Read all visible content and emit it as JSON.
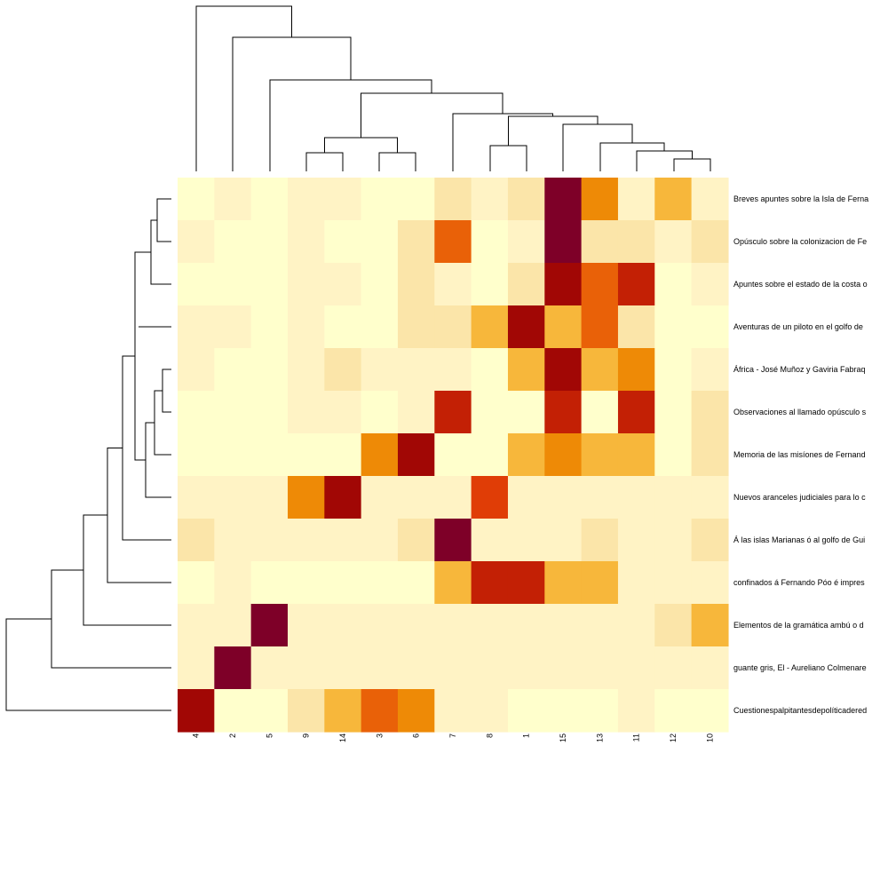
{
  "chart_data": {
    "type": "heatmap",
    "title": "",
    "xlabel": "",
    "ylabel": "",
    "columns": [
      "4",
      "2",
      "5",
      "9",
      "14",
      "3",
      "6",
      "7",
      "8",
      "1",
      "15",
      "13",
      "11",
      "12",
      "10"
    ],
    "rows": [
      "Breves apuntes sobre la Isla de Ferna",
      "Opúsculo sobre la colonizacion de Fe",
      "Apuntes sobre el estado de la costa o",
      "Aventuras de un piloto en el golfo de",
      "África - José Muñoz y Gaviria Fabraq",
      "Observaciones al llamado opúsculo s",
      "Memoria de las misíones de Fernand",
      "Nuevos aranceles judiciales para lo c",
      "Á las islas Marianas ó al golfo de Gui",
      "confinados á Fernando Póo é impres",
      "Elementos de la gramática ambú o d",
      "guante gris, El - Aureliano Colmenare",
      "Cuestionespalpitantesdepolíticadered"
    ],
    "values": [
      [
        0,
        1,
        0,
        1,
        1,
        0,
        0,
        2,
        1,
        2,
        9,
        5,
        1,
        3,
        1
      ],
      [
        1,
        0,
        0,
        1,
        0,
        0,
        2,
        6,
        0,
        1,
        9,
        2,
        2,
        1,
        2
      ],
      [
        0,
        0,
        0,
        1,
        1,
        0,
        2,
        1,
        0,
        2,
        8,
        6,
        7,
        0,
        1
      ],
      [
        1,
        1,
        0,
        1,
        0,
        0,
        2,
        2,
        3,
        8.5,
        3,
        6,
        2,
        0,
        0
      ],
      [
        1,
        0,
        0,
        1,
        2,
        1,
        1,
        1,
        0,
        3,
        8.5,
        3,
        5,
        0,
        1
      ],
      [
        0,
        0,
        0,
        1,
        1,
        0,
        1,
        7,
        0,
        0,
        7.5,
        0,
        7,
        0,
        2
      ],
      [
        0,
        0,
        0,
        0,
        0,
        5,
        8.5,
        0,
        0,
        3,
        5,
        3,
        3,
        0,
        2
      ],
      [
        1,
        1,
        1,
        5,
        8.5,
        1,
        1,
        1,
        6.5,
        1,
        1,
        1,
        1,
        1,
        1
      ],
      [
        2,
        1,
        1,
        1,
        1,
        1,
        2,
        9,
        1,
        1,
        1,
        2,
        1,
        1,
        2
      ],
      [
        0,
        1,
        0,
        0,
        0,
        0,
        0,
        3,
        7,
        7.5,
        3,
        3,
        1,
        1,
        1
      ],
      [
        1,
        1,
        9,
        1,
        1,
        1,
        1,
        1,
        1,
        1,
        1,
        1,
        1,
        2,
        3
      ],
      [
        1,
        9,
        1,
        1,
        1,
        1,
        1,
        1,
        1,
        1,
        1,
        1,
        1,
        1,
        1
      ],
      [
        8.5,
        0,
        0,
        2,
        3,
        6,
        5,
        1,
        1,
        0,
        0,
        0,
        1,
        0,
        0
      ]
    ],
    "color_scale": {
      "min": 0,
      "max": 9,
      "colors": [
        "#ffffcc",
        "#fff3c5",
        "#fbe5a9",
        "#f7d27c",
        "#f7b73b",
        "#f49f08",
        "#ee8a06",
        "#e96108",
        "#e03d06",
        "#c32005",
        "#a10705",
        "#7e0028"
      ]
    },
    "legend": "none",
    "grid": false
  }
}
